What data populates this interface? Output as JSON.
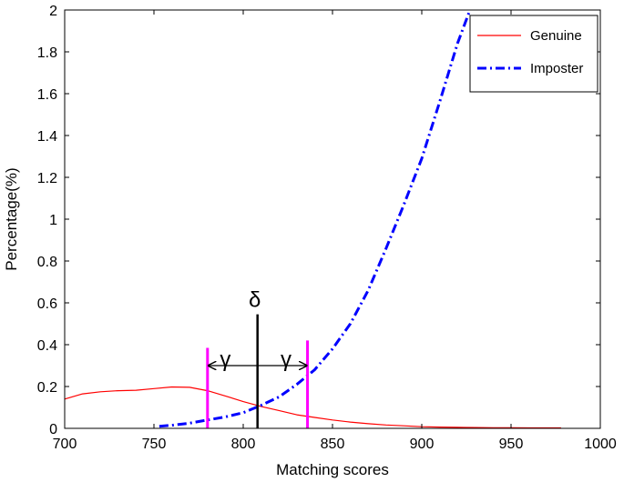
{
  "chart_data": {
    "type": "line",
    "title": "",
    "xlabel": "Matching scores",
    "ylabel": "Percentage(%)",
    "xlim": [
      700,
      1000
    ],
    "ylim": [
      0,
      2
    ],
    "xticks": [
      700,
      750,
      800,
      850,
      900,
      950,
      1000
    ],
    "yticks": [
      0,
      0.2,
      0.4,
      0.6,
      0.8,
      1,
      1.2,
      1.4,
      1.6,
      1.8,
      2
    ],
    "grid": false,
    "legend_position": "top-right",
    "series": [
      {
        "name": "Genuine",
        "color": "#ff0000",
        "line_style": "solid",
        "x": [
          700,
          710,
          720,
          730,
          740,
          750,
          760,
          770,
          780,
          790,
          800,
          810,
          820,
          830,
          840,
          850,
          860,
          870,
          880,
          890,
          900,
          910,
          920,
          930,
          940,
          950,
          960,
          970,
          978
        ],
        "y": [
          0.14,
          0.165,
          0.175,
          0.18,
          0.182,
          0.19,
          0.198,
          0.196,
          0.18,
          0.155,
          0.128,
          0.105,
          0.085,
          0.065,
          0.052,
          0.04,
          0.03,
          0.022,
          0.016,
          0.012,
          0.008,
          0.006,
          0.005,
          0.004,
          0.003,
          0.003,
          0.002,
          0.002,
          0.002
        ]
      },
      {
        "name": "Imposter",
        "color": "#0000ff",
        "line_style": "dash-dot",
        "x": [
          753,
          760,
          770,
          780,
          790,
          800,
          810,
          820,
          830,
          840,
          850,
          860,
          870,
          880,
          890,
          900,
          910,
          920,
          927
        ],
        "y": [
          0.01,
          0.015,
          0.025,
          0.04,
          0.055,
          0.075,
          0.11,
          0.15,
          0.21,
          0.28,
          0.38,
          0.5,
          0.66,
          0.86,
          1.07,
          1.29,
          1.56,
          1.84,
          2.0
        ]
      }
    ],
    "annotations": {
      "delta": {
        "label": "δ",
        "x": 808,
        "y_top": 0.545,
        "color": "#000000"
      },
      "gamma_lines": [
        {
          "x": 780,
          "y_top": 0.385,
          "color": "#ff00ff"
        },
        {
          "x": 836,
          "y_top": 0.42,
          "color": "#ff00ff"
        }
      ],
      "gamma_arrow": {
        "y": 0.3,
        "x_left": 780,
        "x_right": 836,
        "x_mid": 808
      },
      "gamma_labels": [
        {
          "label": "γ",
          "x": 790,
          "y": 0.34
        },
        {
          "label": "γ",
          "x": 824,
          "y": 0.34
        }
      ]
    }
  }
}
